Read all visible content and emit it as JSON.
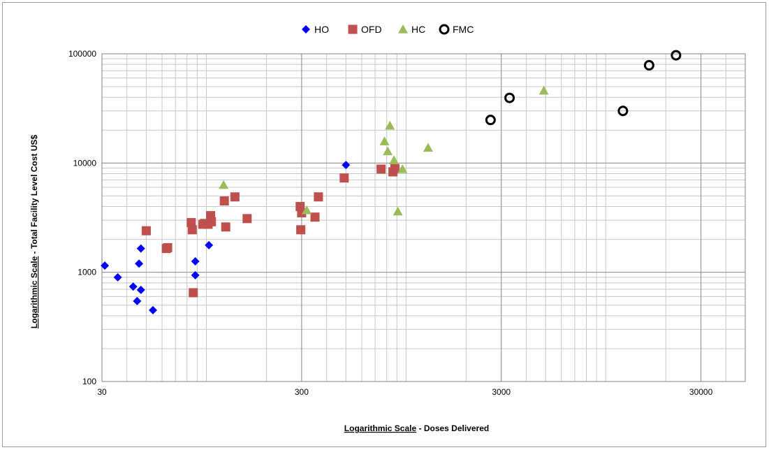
{
  "chart_data": {
    "type": "scatter",
    "x_scale": "log",
    "y_scale": "log",
    "xlim": [
      30,
      50000
    ],
    "ylim": [
      100,
      100000
    ],
    "x_ticks": [
      "30",
      "300",
      "3000",
      "30000"
    ],
    "y_ticks": [
      "100",
      "1000",
      "10000",
      "100000"
    ],
    "grid": true,
    "legend_position": "top",
    "xlabel_underlined": "Logarithmic Scale",
    "xlabel_rest": " - Doses Delivered",
    "ylabel_underlined": "Logarithmic Scale",
    "ylabel_rest": " - Total Facility Level Cost US$",
    "series": [
      {
        "name": "HO",
        "marker": "diamond",
        "color": "#0000ff",
        "points": [
          [
            31,
            1150
          ],
          [
            36,
            900
          ],
          [
            43,
            740
          ],
          [
            45,
            545
          ],
          [
            46,
            1200
          ],
          [
            47,
            1650
          ],
          [
            47,
            690
          ],
          [
            54,
            450
          ],
          [
            88,
            940
          ],
          [
            88,
            1260
          ],
          [
            103,
            1770
          ],
          [
            500,
            9600
          ]
        ]
      },
      {
        "name": "OFD",
        "marker": "square",
        "color": "#c0504d",
        "points": [
          [
            50,
            2400
          ],
          [
            63,
            1650
          ],
          [
            64,
            1680
          ],
          [
            84,
            2850
          ],
          [
            85,
            2450
          ],
          [
            86,
            650
          ],
          [
            96,
            2750
          ],
          [
            98,
            2800
          ],
          [
            102,
            2750
          ],
          [
            105,
            3300
          ],
          [
            106,
            2900
          ],
          [
            123,
            4500
          ],
          [
            125,
            2600
          ],
          [
            139,
            4900
          ],
          [
            160,
            3100
          ],
          [
            295,
            4000
          ],
          [
            297,
            2450
          ],
          [
            300,
            3500
          ],
          [
            350,
            3200
          ],
          [
            364,
            4900
          ],
          [
            490,
            7300
          ],
          [
            750,
            8800
          ],
          [
            860,
            8300
          ],
          [
            880,
            8900
          ]
        ]
      },
      {
        "name": "HC",
        "marker": "triangle",
        "color": "#9bbb59",
        "points": [
          [
            122,
            6300
          ],
          [
            318,
            3700
          ],
          [
            780,
            15800
          ],
          [
            810,
            12800
          ],
          [
            830,
            22000
          ],
          [
            870,
            10600
          ],
          [
            910,
            3600
          ],
          [
            960,
            8800
          ],
          [
            1290,
            13800
          ],
          [
            4900,
            46000
          ]
        ]
      },
      {
        "name": "FMC",
        "marker": "circle-open",
        "color": "#000000",
        "points": [
          [
            2650,
            24800
          ],
          [
            3300,
            39500
          ],
          [
            12200,
            30000
          ],
          [
            16500,
            78500
          ],
          [
            22500,
            97000
          ]
        ]
      }
    ]
  }
}
